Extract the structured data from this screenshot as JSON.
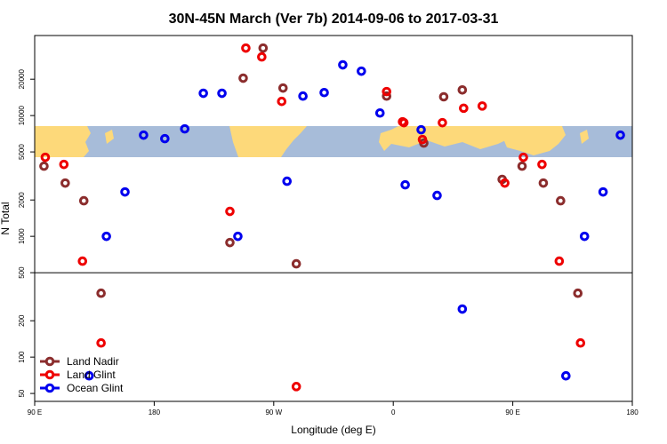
{
  "chart_data": {
    "type": "scatter",
    "title": "30N-45N March (Ver 7b)   2014-09-06 to 2017-03-31",
    "x_label": "Longitude (deg E)",
    "y_label": "N Total",
    "log_y": true,
    "legend": "bottom-left",
    "xlim": [
      90,
      540
    ],
    "ylim": [
      43,
      46000
    ],
    "xticks": [
      {
        "value": 90,
        "label": "90 E"
      },
      180,
      {
        "value": 270,
        "label": "90 W"
      },
      {
        "value": 360,
        "label": "0"
      },
      {
        "value": 450,
        "label": "90 E"
      },
      {
        "value": 540,
        "label": "180"
      }
    ],
    "yticks": [
      50,
      100,
      200,
      500,
      1000,
      2000,
      5000,
      10000,
      20000
    ],
    "divider": 500,
    "series": [
      {
        "name": "Land Nadir",
        "color": "#8b2d2d",
        "x": [
          97,
          113,
          127,
          140,
          237,
          247,
          262,
          277,
          287,
          355,
          383,
          398,
          412,
          442,
          457,
          473,
          486,
          499
        ],
        "values": [
          3810,
          2760,
          1970,
          338,
          888,
          20400,
          36200,
          16900,
          592,
          14500,
          5920,
          14300,
          16300,
          2960,
          3810,
          2760,
          1970,
          338
        ]
      },
      {
        "name": "Land Glint",
        "color": "#ee0000",
        "x": [
          98,
          112,
          126,
          140,
          237,
          249,
          261,
          276,
          287,
          355,
          367,
          368,
          382,
          397,
          413,
          427,
          444,
          458,
          472,
          485,
          501
        ],
        "values": [
          4510,
          3940,
          623,
          131,
          1610,
          36200,
          30600,
          13100,
          57,
          15800,
          8880,
          8730,
          6330,
          8730,
          11500,
          12000,
          2760,
          4510,
          3940,
          623,
          131
        ]
      },
      {
        "name": "Ocean Glint",
        "color": "#0000ee",
        "x": [
          131,
          144,
          158,
          172,
          188,
          203,
          217,
          231,
          243,
          280,
          292,
          308,
          322,
          336,
          350,
          369,
          381,
          393,
          412,
          490,
          504,
          518,
          531
        ],
        "values": [
          70,
          1000,
          2330,
          6890,
          6440,
          7760,
          15300,
          15300,
          1000,
          2860,
          14500,
          15500,
          26300,
          23300,
          10500,
          2670,
          7630,
          2180,
          250,
          70,
          1000,
          2330,
          6890
        ]
      }
    ]
  }
}
